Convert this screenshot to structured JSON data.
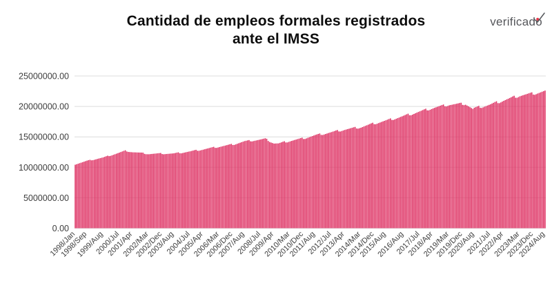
{
  "header": {
    "title_line1": "Cantidad de empleos formales registrados",
    "title_line2": "ante el IMSS",
    "logo": {
      "text_main": "verificad",
      "text_last": "o"
    }
  },
  "chart_data": {
    "type": "bar",
    "title": "Cantidad de empleos formales registrados ante el IMSS",
    "series_name": "Empleos formales registrados ante el IMSS",
    "frequency": "monthly",
    "x_start": "1998/Jan",
    "x_end": "2024/Aug",
    "ylim": [
      0,
      25000000
    ],
    "grid": "horizontal",
    "legend": "none",
    "bar_color": "#de3163",
    "grid_color": "#dcdcdc",
    "axis_text_color": "#3d3d3d",
    "y_tick_values": [
      0,
      5000000,
      10000000,
      15000000,
      20000000,
      25000000
    ],
    "y_tick_labels": [
      "0.00",
      "5000000.00",
      "10000000.00",
      "15000000.00",
      "20000000.00",
      "25000000.00"
    ],
    "x_tick_labels": [
      "1998/Jan",
      "1998/Sep",
      "1999/Aug",
      "2000/Jul",
      "2001/Apr",
      "2002/Mar",
      "2002/Dec",
      "2003/Aug",
      "2004/Jul",
      "2005/Apr",
      "2006/Mar",
      "2006/Dec",
      "2007/Aug",
      "2008/Jul",
      "2009/Apr",
      "2010/Mar",
      "2010/Dec",
      "2011/Aug",
      "2012/Jul",
      "2013/Apr",
      "2014/Mar",
      "2014/Dec",
      "2015/Aug",
      "2016/Aug",
      "2017/Jul",
      "2018/Apr",
      "2019/Mar",
      "2019/Dec",
      "2020/Aug",
      "2021/Jul",
      "2022/Apr",
      "2023/Mar",
      "2023/Dec",
      "2024/Aug"
    ],
    "anchors": [
      {
        "month": "1998/Jan",
        "value": 10500000
      },
      {
        "month": "1998/Sep",
        "value": 11050000
      },
      {
        "month": "1999/Aug",
        "value": 11600000
      },
      {
        "month": "2000/Jul",
        "value": 12400000
      },
      {
        "month": "2000/Nov",
        "value": 12700000
      },
      {
        "month": "2001/Apr",
        "value": 12500000
      },
      {
        "month": "2002/Mar",
        "value": 12200000
      },
      {
        "month": "2002/Dec",
        "value": 12250000
      },
      {
        "month": "2003/Aug",
        "value": 12250000
      },
      {
        "month": "2004/Jul",
        "value": 12600000
      },
      {
        "month": "2005/Apr",
        "value": 12950000
      },
      {
        "month": "2006/Mar",
        "value": 13400000
      },
      {
        "month": "2006/Dec",
        "value": 13750000
      },
      {
        "month": "2007/Aug",
        "value": 14250000
      },
      {
        "month": "2008/Jul",
        "value": 14550000
      },
      {
        "month": "2008/Oct",
        "value": 14650000
      },
      {
        "month": "2009/Apr",
        "value": 13950000
      },
      {
        "month": "2009/Jul",
        "value": 13900000
      },
      {
        "month": "2010/Mar",
        "value": 14350000
      },
      {
        "month": "2010/Dec",
        "value": 14750000
      },
      {
        "month": "2011/Aug",
        "value": 15250000
      },
      {
        "month": "2012/Jul",
        "value": 15750000
      },
      {
        "month": "2013/Apr",
        "value": 16200000
      },
      {
        "month": "2014/Mar",
        "value": 16600000
      },
      {
        "month": "2014/Dec",
        "value": 17200000
      },
      {
        "month": "2015/Aug",
        "value": 17650000
      },
      {
        "month": "2016/Aug",
        "value": 18400000
      },
      {
        "month": "2017/Jul",
        "value": 19150000
      },
      {
        "month": "2018/Apr",
        "value": 19750000
      },
      {
        "month": "2019/Mar",
        "value": 20300000
      },
      {
        "month": "2019/Dec",
        "value": 20400000
      },
      {
        "month": "2020/Feb",
        "value": 20450000
      },
      {
        "month": "2020/Jul",
        "value": 19550000
      },
      {
        "month": "2020/Aug",
        "value": 19700000
      },
      {
        "month": "2021/Jul",
        "value": 20300000
      },
      {
        "month": "2022/Apr",
        "value": 21000000
      },
      {
        "month": "2023/Mar",
        "value": 21800000
      },
      {
        "month": "2023/Dec",
        "value": 22100000
      },
      {
        "month": "2024/Aug",
        "value": 22500000
      }
    ]
  }
}
